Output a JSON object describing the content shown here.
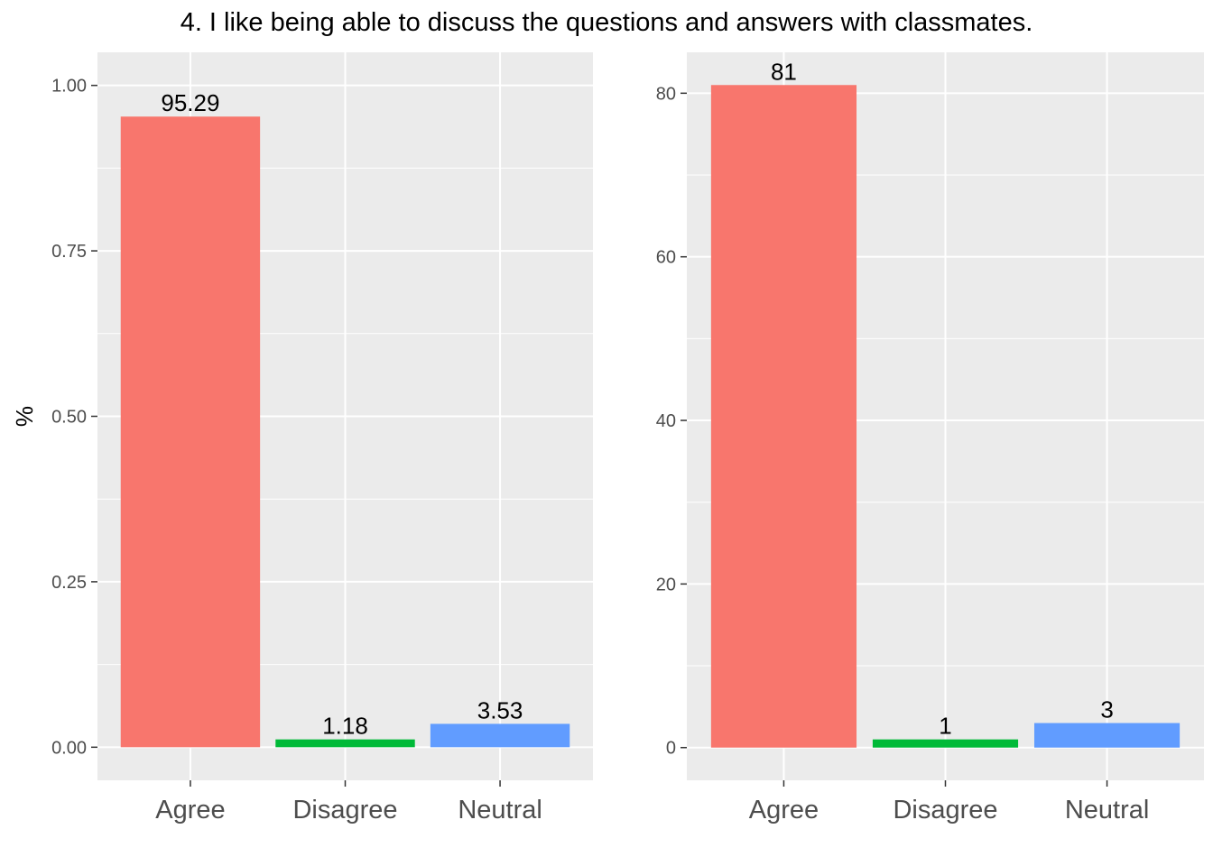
{
  "title": "4. I like being able to discuss the questions and answers with classmates.",
  "chart_data": [
    {
      "type": "bar",
      "categories": [
        "Agree",
        "Disagree",
        "Neutral"
      ],
      "values": [
        0.9529,
        0.0118,
        0.0353
      ],
      "data_labels": [
        "95.29",
        "1.18",
        "3.53"
      ],
      "colors": [
        "#F8766D",
        "#00BA38",
        "#619CFF"
      ],
      "ylabel": "%",
      "xlabel": "",
      "ylim": [
        -0.05,
        1.05
      ],
      "yticks": [
        0,
        0.25,
        0.5,
        0.75,
        1.0
      ],
      "ytick_labels": [
        "0.00",
        "0.25",
        "0.50",
        "0.75",
        "1.00"
      ],
      "grid": true,
      "legend": "none"
    },
    {
      "type": "bar",
      "categories": [
        "Agree",
        "Disagree",
        "Neutral"
      ],
      "values": [
        81,
        1,
        3
      ],
      "data_labels": [
        "81",
        "1",
        "3"
      ],
      "colors": [
        "#F8766D",
        "#00BA38",
        "#619CFF"
      ],
      "ylabel": "",
      "xlabel": "",
      "ylim": [
        -4,
        85
      ],
      "yticks": [
        0,
        20,
        40,
        60,
        80
      ],
      "ytick_labels": [
        "0",
        "20",
        "40",
        "60",
        "80"
      ],
      "grid": true,
      "legend": "none"
    }
  ]
}
